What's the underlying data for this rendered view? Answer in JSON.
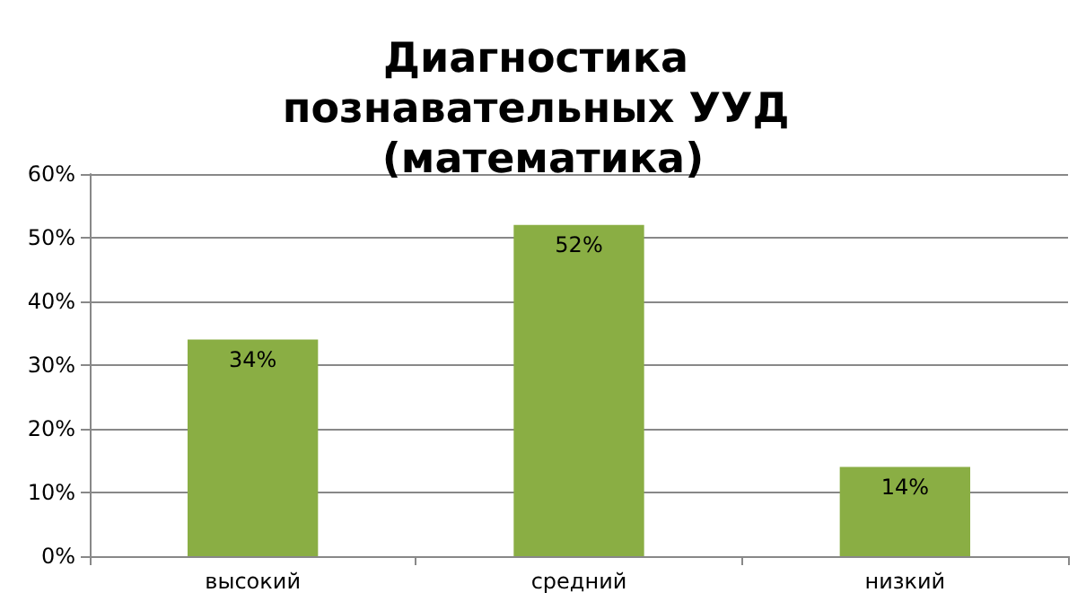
{
  "chart_data": {
    "type": "bar",
    "title": "Диагностика познавательных УУД (математика)",
    "categories": [
      "высокий",
      "средний",
      "низкий"
    ],
    "values": [
      34,
      52,
      14
    ],
    "color": "#8aae44",
    "value_labels": [
      "34%",
      "52%",
      "14%"
    ],
    "ylim": [
      0,
      60
    ],
    "yticks": [
      {
        "value": 0,
        "label": "0%"
      },
      {
        "value": 10,
        "label": "10%"
      },
      {
        "value": 20,
        "label": "20%"
      },
      {
        "value": 30,
        "label": "30%"
      },
      {
        "value": 40,
        "label": "40%"
      },
      {
        "value": 50,
        "label": "50%"
      },
      {
        "value": 60,
        "label": "60%"
      }
    ],
    "grid": "y"
  }
}
